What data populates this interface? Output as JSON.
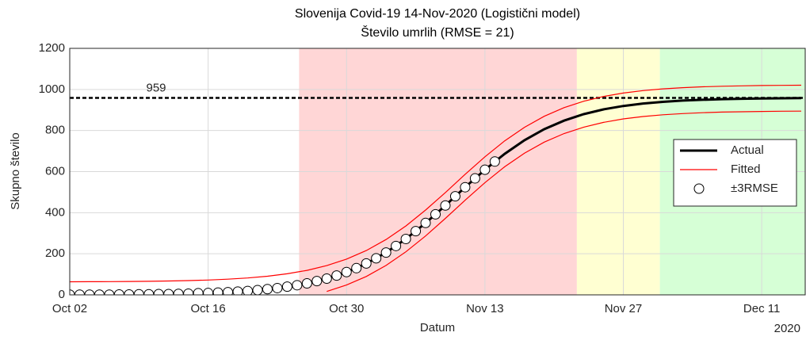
{
  "chart_data": {
    "type": "line",
    "title": "Slovenija Covid-19 14-Nov-2020 (Logistični model)",
    "subtitle": "Število umrlih (RMSE = 21)",
    "xlabel": "Datum",
    "ylabel": "Skupno število",
    "year_label": "2020",
    "xlim": [
      0,
      74.4
    ],
    "xticks": [
      {
        "value": 0,
        "label": "Oct 02"
      },
      {
        "value": 14,
        "label": "Oct 16"
      },
      {
        "value": 28,
        "label": "Oct 30"
      },
      {
        "value": 42,
        "label": "Nov 13"
      },
      {
        "value": 56,
        "label": "Nov 27"
      },
      {
        "value": 70,
        "label": "Dec 11"
      }
    ],
    "ylim": [
      0,
      1200
    ],
    "yticks": [
      0,
      200,
      400,
      600,
      800,
      1000,
      1200
    ],
    "grid": true,
    "legend": "east",
    "regions": [
      {
        "xlim": [
          23.2,
          51.3
        ],
        "color": "#ffd6d6"
      },
      {
        "xlim": [
          51.3,
          59.7
        ],
        "color": "#ffffd2"
      },
      {
        "xlim": [
          59.7,
          74.4
        ],
        "color": "#d6ffd6"
      }
    ],
    "reference_line": {
      "value": 959,
      "color": "#000000"
    },
    "series": [
      {
        "name": "Actual",
        "color": "#000000",
        "style": "line",
        "linewidth": 3,
        "x": [
          0,
          2,
          4,
          6,
          8,
          10,
          12,
          14,
          16,
          18,
          20,
          22,
          24,
          26,
          28,
          30,
          32,
          34,
          36,
          38,
          40,
          42,
          44,
          46,
          48,
          50,
          52,
          54,
          56,
          58,
          60,
          62,
          64,
          66,
          68,
          70,
          72,
          74
        ],
        "values": [
          0.7,
          1,
          1.5,
          2.1,
          3.1,
          4.5,
          6.5,
          9.3,
          13.4,
          19.3,
          27.7,
          39.6,
          56.3,
          79.4,
          110.9,
          152.5,
          206.2,
          272.4,
          349.7,
          435.3,
          523.8,
          609.3,
          686.6,
          752.8,
          806.4,
          848.2,
          879.6,
          902.8,
          919.4,
          931.3,
          939.7,
          945.6,
          949.7,
          952.6,
          954.5,
          955.9,
          956.9,
          957.5
        ]
      },
      {
        "name": "Fitted",
        "color": "#ff0000",
        "style": "line",
        "linewidth": 1.2,
        "x": [
          0,
          2,
          4,
          6,
          8,
          10,
          12,
          14,
          16,
          18,
          20,
          22,
          24,
          26,
          28,
          30,
          32,
          34,
          36,
          38,
          40,
          42,
          44,
          46,
          48,
          50,
          52,
          54,
          56,
          58,
          60,
          62,
          64,
          66,
          68,
          70,
          72,
          74
        ],
        "values": [
          63.7,
          64,
          64.5,
          65.1,
          66.1,
          67.5,
          69.5,
          72.3,
          76.4,
          82.3,
          90.7,
          102.6,
          119.3,
          142.4,
          173.9,
          215.5,
          269.2,
          335.4,
          412.7,
          498.3,
          586.8,
          672.3,
          749.6,
          815.8,
          869.4,
          911.2,
          942.6,
          965.8,
          982.4,
          994.3,
          1002.7,
          1008.6,
          1012.7,
          1015.6,
          1017.5,
          1018.9,
          1019.9,
          1020.5
        ],
        "lower": [
          null,
          null,
          null,
          null,
          null,
          null,
          null,
          null,
          null,
          null,
          null,
          null,
          null,
          16.4,
          47.9,
          89.5,
          143.2,
          209.4,
          286.7,
          372.3,
          460.8,
          546.3,
          623.6,
          689.8,
          743.4,
          785.2,
          816.6,
          839.8,
          856.4,
          868.3,
          876.7,
          882.6,
          886.7,
          889.6,
          891.5,
          892.9,
          893.9,
          894.5
        ]
      },
      {
        "name": "±3RMSE",
        "color": "#000000",
        "style": "marker",
        "x": [
          0,
          1,
          2,
          3,
          4,
          5,
          6,
          7,
          8,
          9,
          10,
          11,
          12,
          13,
          14,
          15,
          16,
          17,
          18,
          19,
          20,
          21,
          22,
          23,
          24,
          25,
          26,
          27,
          28,
          29,
          30,
          31,
          32,
          33,
          34,
          35,
          36,
          37,
          38,
          39,
          40,
          41,
          42,
          43
        ],
        "values": [
          1,
          1,
          1,
          1,
          1,
          2,
          2,
          3,
          3,
          4,
          4,
          5,
          6,
          8,
          9,
          11,
          13,
          16,
          19,
          23,
          28,
          33,
          40,
          47,
          56,
          67,
          79,
          94,
          111,
          130,
          153,
          178,
          206,
          238,
          272,
          310,
          350,
          392,
          435,
          480,
          524,
          567,
          609,
          649
        ]
      }
    ]
  }
}
